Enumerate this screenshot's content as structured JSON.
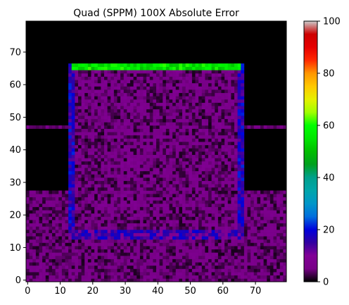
{
  "chart_data": {
    "type": "heatmap",
    "title": "Quad (SPPM) 100X Absolute Error",
    "grid": false,
    "xlim": [
      -0.5,
      79.5
    ],
    "ylim": [
      -0.5,
      79.5
    ],
    "origin": "lower",
    "colormap": "nipy_spectral",
    "x_ticks": [
      0,
      10,
      20,
      30,
      40,
      50,
      60,
      70
    ],
    "x_tick_labels": [
      "0",
      "10",
      "20",
      "30",
      "40",
      "50",
      "60",
      "70"
    ],
    "y_ticks": [
      0,
      10,
      20,
      30,
      40,
      50,
      60,
      70
    ],
    "y_tick_labels": [
      "0",
      "10",
      "20",
      "30",
      "40",
      "50",
      "60",
      "70"
    ],
    "colorbar": {
      "vmin": 0,
      "vmax": 100,
      "ticks": [
        0,
        20,
        40,
        60,
        80,
        100
      ],
      "tick_labels": [
        "0",
        "20",
        "40",
        "60",
        "80",
        "100"
      ],
      "placement": "right"
    },
    "regions": [
      {
        "label": "lower noisy band",
        "x": [
          0,
          79
        ],
        "y": [
          0,
          27
        ],
        "value_range": [
          1,
          8
        ]
      },
      {
        "label": "thin horizontal line",
        "x": [
          0,
          79
        ],
        "y": [
          47,
          47
        ],
        "value_range": [
          3,
          6
        ]
      },
      {
        "label": "square interior",
        "x": [
          15,
          64
        ],
        "y": [
          16,
          64
        ],
        "value_range": [
          1,
          9
        ]
      },
      {
        "label": "square left edge",
        "x": [
          13,
          14
        ],
        "y": [
          13,
          66
        ],
        "value_range": [
          12,
          22
        ]
      },
      {
        "label": "square right edge",
        "x": [
          65,
          66
        ],
        "y": [
          13,
          66
        ],
        "value_range": [
          12,
          22
        ]
      },
      {
        "label": "square bottom edge",
        "x": [
          13,
          66
        ],
        "y": [
          13,
          15
        ],
        "value_range": [
          8,
          20
        ]
      },
      {
        "label": "square top edge",
        "x": [
          14,
          65
        ],
        "y": [
          65,
          66
        ],
        "value_range": [
          50,
          62
        ]
      }
    ]
  }
}
